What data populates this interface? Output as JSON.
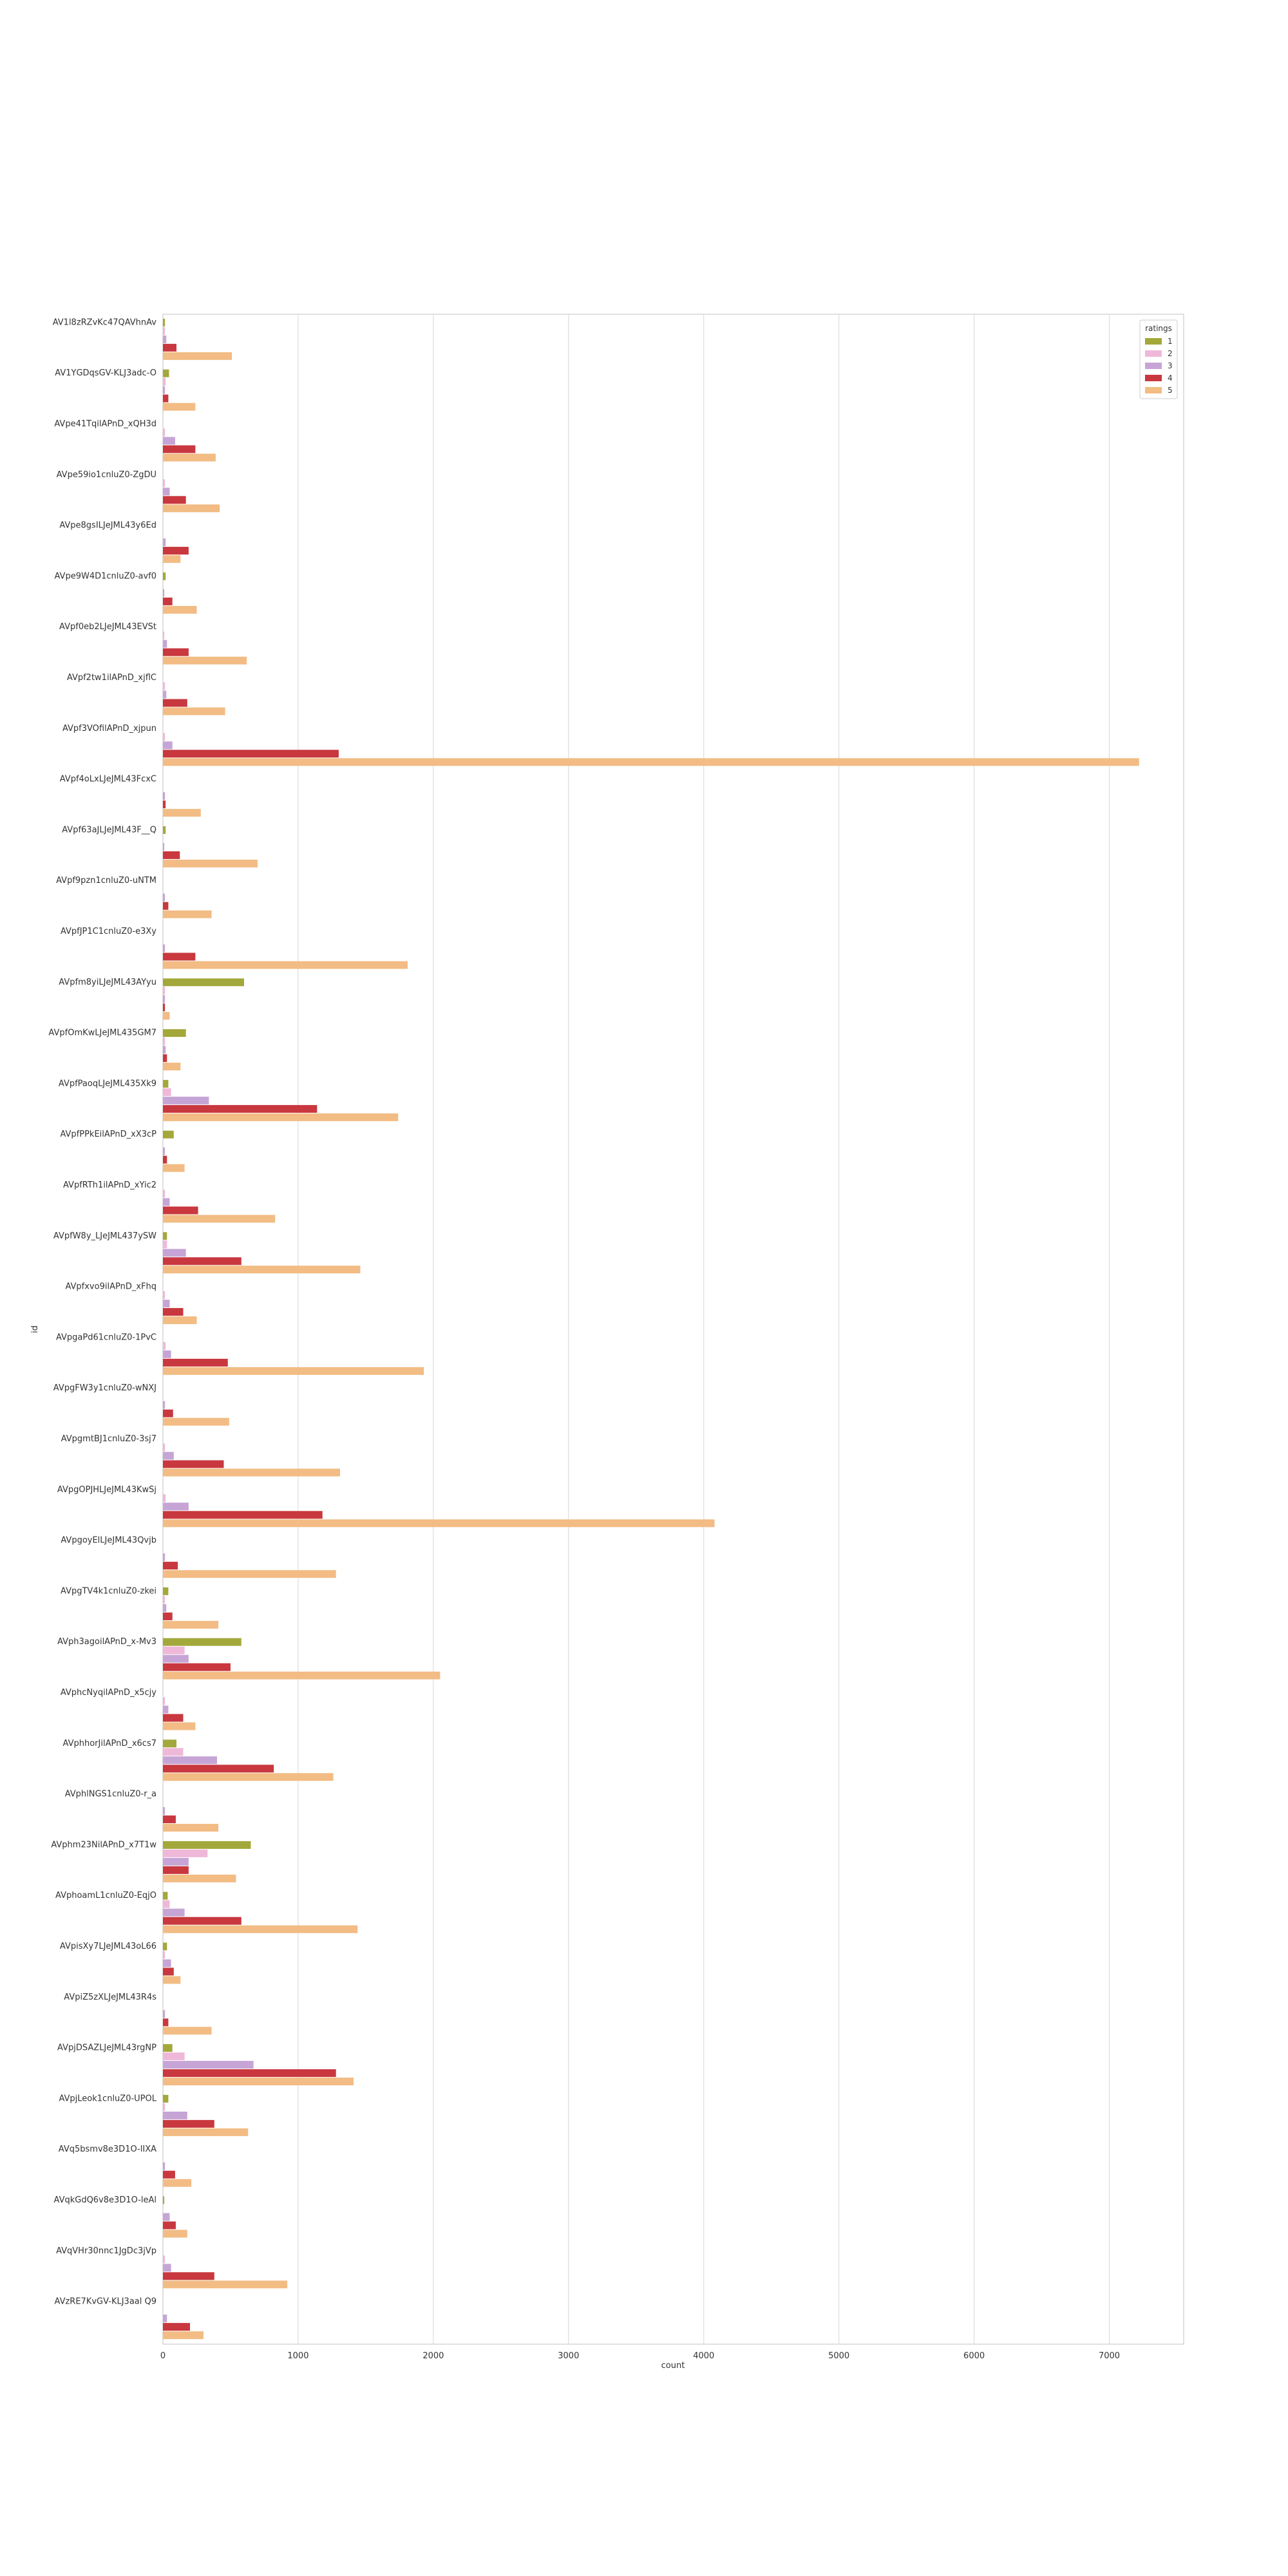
{
  "chart_data": {
    "type": "bar",
    "orientation": "horizontal",
    "title": "",
    "xlabel": "count",
    "ylabel": "id",
    "xlim": [
      0,
      7550
    ],
    "xticks": [
      0,
      1000,
      2000,
      3000,
      4000,
      5000,
      6000,
      7000
    ],
    "grid": true,
    "legend": {
      "title": "ratings",
      "placement": "top-right"
    },
    "colors": {
      "1": "#a3a83a",
      "2": "#f0b8d8",
      "3": "#c6a5d6",
      "4": "#c8383e",
      "5": "#f2bc84"
    },
    "categories": [
      "AV1l8zRZvKc47QAVhnAv",
      "AV1YGDqsGV-KLJ3adc-O",
      "AVpe41TqilAPnD_xQH3d",
      "AVpe59io1cnluZ0-ZgDU",
      "AVpe8gsILJeJML43y6Ed",
      "AVpe9W4D1cnluZ0-avf0",
      "AVpf0eb2LJeJML43EVSt",
      "AVpf2tw1ilAPnD_xjflC",
      "AVpf3VOfilAPnD_xjpun",
      "AVpf4oLxLJeJML43FcxC",
      "AVpf63aJLJeJML43F__Q",
      "AVpf9pzn1cnluZ0-uNTM",
      "AVpfJP1C1cnluZ0-e3Xy",
      "AVpfm8yiLJeJML43AYyu",
      "AVpfOmKwLJeJML435GM7",
      "AVpfPaoqLJeJML435Xk9",
      "AVpfPPkEilAPnD_xX3cP",
      "AVpfRTh1ilAPnD_xYic2",
      "AVpfW8y_LJeJML437ySW",
      "AVpfxvo9ilAPnD_xFhq",
      "AVpgaPd61cnluZ0-1PvC",
      "AVpgFW3y1cnluZ0-wNXJ",
      "AVpgmtBJ1cnluZ0-3sj7",
      "AVpgOPJHLJeJML43KwSj",
      "AVpgoyElLJeJML43Qvjb",
      "AVpgTV4k1cnluZ0-zkei",
      "AVph3agoilAPnD_x-Mv3",
      "AVphcNyqilAPnD_x5cjy",
      "AVphhorJilAPnD_x6cs7",
      "AVphlNGS1cnluZ0-r_a",
      "AVphm23NilAPnD_x7T1w",
      "AVphoamL1cnluZ0-EqjO",
      "AVpisXy7LJeJML43oL66",
      "AVpiZ5zXLJeJML43R4s",
      "AVpjDSAZLJeJML43rgNP",
      "AVpjLeok1cnluZ0-UPOL",
      "AVq5bsmv8e3D1O-lIXA",
      "AVqkGdQ6v8e3D1O-leAl",
      "AVqVHr30nnc1JgDc3jVp",
      "AVzRE7KvGV-KLJ3aal Q9"
    ],
    "series": [
      {
        "name": "1",
        "values": [
          15,
          45,
          0,
          0,
          0,
          20,
          0,
          0,
          0,
          0,
          20,
          0,
          0,
          600,
          170,
          40,
          80,
          0,
          30,
          0,
          0,
          0,
          0,
          0,
          0,
          40,
          580,
          0,
          100,
          0,
          650,
          35,
          30,
          0,
          70,
          40,
          0,
          10,
          0,
          0
        ]
      },
      {
        "name": "2",
        "values": [
          15,
          20,
          15,
          15,
          0,
          0,
          10,
          15,
          15,
          0,
          0,
          0,
          0,
          15,
          15,
          60,
          0,
          15,
          30,
          15,
          20,
          0,
          15,
          20,
          0,
          15,
          160,
          15,
          150,
          0,
          330,
          50,
          15,
          0,
          160,
          15,
          0,
          0,
          15,
          0
        ]
      },
      {
        "name": "3",
        "values": [
          25,
          15,
          90,
          50,
          20,
          10,
          30,
          25,
          70,
          15,
          10,
          15,
          15,
          15,
          20,
          340,
          15,
          50,
          170,
          50,
          60,
          15,
          80,
          190,
          15,
          25,
          190,
          40,
          400,
          15,
          190,
          160,
          60,
          15,
          670,
          180,
          15,
          50,
          60,
          30
        ]
      },
      {
        "name": "4",
        "values": [
          100,
          40,
          240,
          170,
          190,
          70,
          190,
          180,
          1300,
          20,
          125,
          40,
          240,
          15,
          30,
          1140,
          30,
          260,
          580,
          150,
          480,
          75,
          450,
          1180,
          110,
          70,
          500,
          150,
          820,
          95,
          190,
          580,
          80,
          40,
          1280,
          380,
          90,
          95,
          380,
          200
        ]
      },
      {
        "name": "5",
        "values": [
          510,
          240,
          390,
          420,
          130,
          250,
          620,
          460,
          7220,
          280,
          700,
          360,
          1810,
          50,
          130,
          1740,
          160,
          830,
          1460,
          250,
          1930,
          490,
          1310,
          4080,
          1280,
          410,
          2050,
          240,
          1260,
          410,
          540,
          1440,
          130,
          360,
          1410,
          630,
          210,
          180,
          920,
          300
        ]
      }
    ]
  }
}
